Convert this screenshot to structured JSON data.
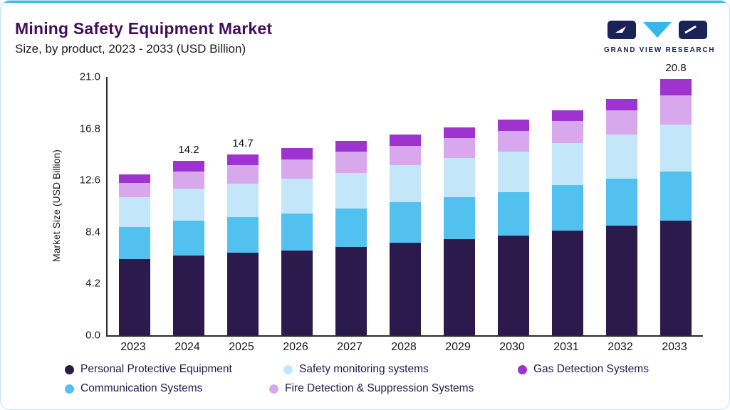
{
  "header": {
    "title": "Mining Safety Equipment Market",
    "subtitle": "Size, by product, 2023 - 2033 (USD Billion)"
  },
  "logo": {
    "text": "GRAND VIEW RESEARCH"
  },
  "colors": {
    "accent_line": "#3FBCEA",
    "card_border": "#BFE2F2",
    "title": "#430E5E",
    "logo_navy": "#1A2256",
    "logo_cyan": "#35B9EA"
  },
  "chart_data": {
    "type": "bar",
    "stacked": true,
    "title": "Mining Safety Equipment Market Size, by product, 2023 - 2033 (USD Billion)",
    "xlabel": "",
    "ylabel": "Market Size (USD Billion)",
    "ylim": [
      0,
      21
    ],
    "ytick_labels": [
      "0.0",
      "4.2",
      "8.4",
      "12.6",
      "16.8",
      "21.0"
    ],
    "ytick_values": [
      0,
      4.2,
      8.4,
      12.6,
      16.8,
      21
    ],
    "grid": false,
    "legend_position": "bottom",
    "categories": [
      "2023",
      "2024",
      "2025",
      "2026",
      "2027",
      "2028",
      "2029",
      "2030",
      "2031",
      "2032",
      "2033"
    ],
    "series": [
      {
        "name": "Personal Protective Equipment",
        "color": "#2C1A4D",
        "values": [
          6.2,
          6.5,
          6.7,
          6.9,
          7.2,
          7.5,
          7.8,
          8.1,
          8.5,
          8.9,
          9.3
        ]
      },
      {
        "name": "Communication Systems",
        "color": "#53C1EF",
        "values": [
          2.6,
          2.8,
          2.9,
          3.0,
          3.1,
          3.3,
          3.4,
          3.5,
          3.7,
          3.8,
          4.0
        ]
      },
      {
        "name": "Safety monitoring systems",
        "color": "#C3E7F9",
        "values": [
          2.4,
          2.6,
          2.7,
          2.8,
          2.9,
          3.0,
          3.2,
          3.3,
          3.4,
          3.6,
          3.8
        ]
      },
      {
        "name": "Fire Detection & Suppression Systems",
        "color": "#D7A8EC",
        "values": [
          1.2,
          1.4,
          1.5,
          1.6,
          1.7,
          1.6,
          1.6,
          1.7,
          1.8,
          2.0,
          2.4
        ]
      },
      {
        "name": "Gas Detection Systems",
        "color": "#9E33CF",
        "values": [
          0.7,
          0.9,
          0.9,
          0.9,
          0.9,
          0.9,
          0.9,
          0.9,
          0.9,
          0.9,
          1.3
        ]
      }
    ],
    "totals": [
      13.1,
      14.2,
      14.7,
      15.2,
      15.8,
      16.3,
      16.9,
      17.5,
      18.3,
      19.2,
      20.8
    ],
    "bar_labels": [
      "",
      "14.2",
      "14.7",
      "",
      "",
      "",
      "",
      "",
      "",
      "",
      "20.8"
    ]
  },
  "legend": {
    "rows": [
      [
        {
          "label": "Personal Protective Equipment",
          "color": "#2C1A4D"
        },
        {
          "label": "Safety monitoring systems",
          "color": "#C3E7F9"
        },
        {
          "label": "Gas Detection Systems",
          "color": "#9E33CF"
        }
      ],
      [
        {
          "label": "Communication Systems",
          "color": "#53C1EF"
        },
        {
          "label": "Fire Detection & Suppression Systems",
          "color": "#D7A8EC"
        }
      ]
    ]
  }
}
